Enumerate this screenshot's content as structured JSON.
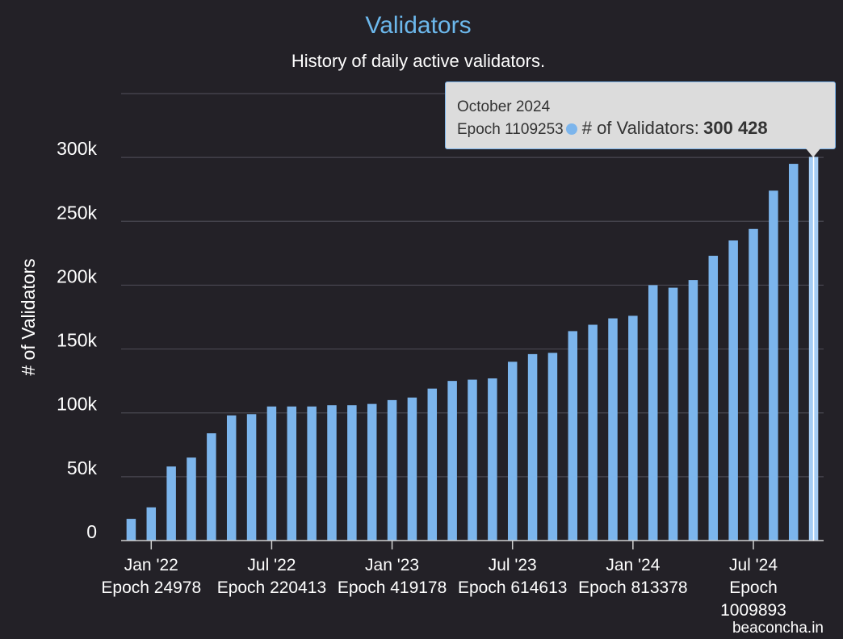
{
  "chart_data": {
    "type": "bar",
    "title": "Validators",
    "subtitle": "History of daily active validators.",
    "ylabel": "# of Validators",
    "xlabel": "",
    "ylim": [
      0,
      350000
    ],
    "yticks": [
      {
        "value": 0,
        "label": "0"
      },
      {
        "value": 50000,
        "label": "50k"
      },
      {
        "value": 100000,
        "label": "100k"
      },
      {
        "value": 150000,
        "label": "150k"
      },
      {
        "value": 200000,
        "label": "200k"
      },
      {
        "value": 250000,
        "label": "250k"
      },
      {
        "value": 300000,
        "label": "300k"
      }
    ],
    "xticks": [
      {
        "index": 1,
        "lines": [
          "Jan '22",
          "Epoch 24978"
        ]
      },
      {
        "index": 7,
        "lines": [
          "Jul '22",
          "Epoch 220413"
        ]
      },
      {
        "index": 13,
        "lines": [
          "Jan '23",
          "Epoch 419178"
        ]
      },
      {
        "index": 19,
        "lines": [
          "Jul '23",
          "Epoch 614613"
        ]
      },
      {
        "index": 25,
        "lines": [
          "Jan '24",
          "Epoch 813378"
        ]
      },
      {
        "index": 31,
        "lines": [
          "Jul '24",
          "Epoch",
          "1009893"
        ]
      }
    ],
    "series": [
      {
        "name": "# of Validators",
        "color": "#7cb5ec",
        "values": [
          17000,
          26000,
          58000,
          65000,
          84000,
          98000,
          99000,
          105000,
          105000,
          105000,
          106000,
          106000,
          107000,
          110000,
          112000,
          119000,
          125000,
          126000,
          127000,
          140000,
          146000,
          147000,
          164000,
          169000,
          174000,
          176000,
          200000,
          198000,
          204000,
          223000,
          235000,
          244000,
          274000,
          295000,
          300428
        ]
      }
    ],
    "highlight_index": 34,
    "tooltip": {
      "month": "October 2024",
      "epoch": "Epoch 1109253",
      "series_label": "# of Validators:",
      "value_label": "300 428"
    }
  },
  "footer": {
    "credit": "beaconcha.in"
  }
}
